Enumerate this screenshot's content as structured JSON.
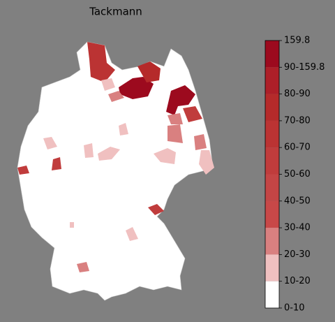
{
  "title": "Tackmann",
  "colorbar": {
    "labels": [
      "159.8",
      "90-159.8",
      "80-90",
      "70-80",
      "60-70",
      "50-60",
      "40-50",
      "30-40",
      "20-30",
      "10-20",
      "0-10"
    ],
    "colors": [
      "#9c0a1e",
      "#ad1f28",
      "#b52a2a",
      "#bb3333",
      "#c03c3c",
      "#c44545",
      "#c84848",
      "#d98080",
      "#f0c0c0",
      "#ffffff"
    ]
  }
}
